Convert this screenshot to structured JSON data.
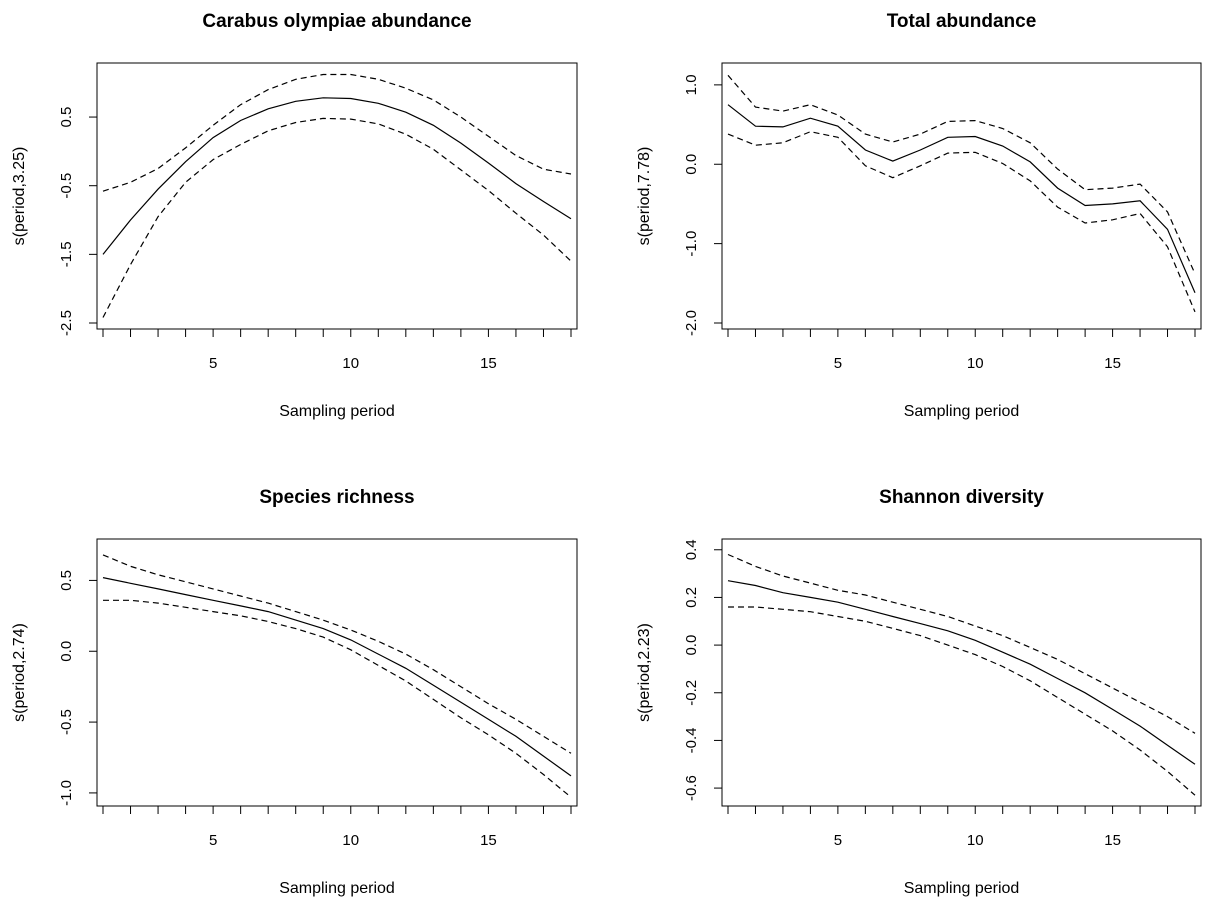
{
  "chart_data": [
    {
      "type": "line",
      "title": "Carabus olympiae abundance",
      "xlabel": "Sampling period",
      "ylabel": "s(period,3.25)",
      "xlim": [
        1,
        18
      ],
      "ylim": [
        -2.5,
        1.2
      ],
      "xticks": [
        5,
        10,
        15
      ],
      "yticks": [
        -2.5,
        -1.5,
        -0.5,
        0.5
      ],
      "x": [
        1,
        2,
        3,
        4,
        5,
        6,
        7,
        8,
        9,
        10,
        11,
        12,
        13,
        14,
        15,
        16,
        17,
        18
      ],
      "series": [
        {
          "role": "estimate",
          "values": [
            -1.5,
            -1.0,
            -0.55,
            -0.15,
            0.2,
            0.45,
            0.62,
            0.73,
            0.78,
            0.77,
            0.7,
            0.57,
            0.38,
            0.12,
            -0.17,
            -0.47,
            -0.73,
            -0.98
          ]
        },
        {
          "role": "upper",
          "values": [
            -0.58,
            -0.45,
            -0.25,
            0.05,
            0.38,
            0.68,
            0.9,
            1.05,
            1.12,
            1.12,
            1.05,
            0.92,
            0.75,
            0.5,
            0.22,
            -0.06,
            -0.26,
            -0.33
          ]
        },
        {
          "role": "lower",
          "values": [
            -2.42,
            -1.65,
            -0.95,
            -0.45,
            -0.12,
            0.1,
            0.3,
            0.42,
            0.48,
            0.47,
            0.4,
            0.25,
            0.03,
            -0.27,
            -0.57,
            -0.9,
            -1.22,
            -1.6
          ]
        }
      ]
    },
    {
      "type": "line",
      "title": "Total abundance",
      "xlabel": "Sampling period",
      "ylabel": "s(period,7.78)",
      "xlim": [
        1,
        18
      ],
      "ylim": [
        -2.0,
        1.2
      ],
      "xticks": [
        5,
        10,
        15
      ],
      "yticks": [
        -2.0,
        -1.0,
        0.0,
        1.0
      ],
      "x": [
        1,
        2,
        3,
        4,
        5,
        6,
        7,
        8,
        9,
        10,
        11,
        12,
        13,
        14,
        15,
        16,
        17,
        18
      ],
      "series": [
        {
          "role": "estimate",
          "values": [
            0.75,
            0.48,
            0.47,
            0.58,
            0.48,
            0.18,
            0.04,
            0.18,
            0.34,
            0.35,
            0.23,
            0.03,
            -0.3,
            -0.52,
            -0.5,
            -0.46,
            -0.82,
            -1.62
          ]
        },
        {
          "role": "upper",
          "values": [
            1.12,
            0.72,
            0.67,
            0.75,
            0.62,
            0.38,
            0.28,
            0.38,
            0.54,
            0.55,
            0.45,
            0.27,
            -0.06,
            -0.32,
            -0.3,
            -0.25,
            -0.6,
            -1.38
          ]
        },
        {
          "role": "lower",
          "values": [
            0.38,
            0.24,
            0.27,
            0.41,
            0.34,
            -0.02,
            -0.17,
            -0.02,
            0.14,
            0.15,
            0.01,
            -0.21,
            -0.54,
            -0.74,
            -0.7,
            -0.62,
            -1.04,
            -1.86
          ]
        }
      ]
    },
    {
      "type": "line",
      "title": "Species richness",
      "xlabel": "Sampling period",
      "ylabel": "s(period,2.74)",
      "xlim": [
        1,
        18
      ],
      "ylim": [
        -1.05,
        0.75
      ],
      "xticks": [
        5,
        10,
        15
      ],
      "yticks": [
        -1.0,
        -0.5,
        0.0,
        0.5
      ],
      "x": [
        1,
        2,
        3,
        4,
        5,
        6,
        7,
        8,
        9,
        10,
        11,
        12,
        13,
        14,
        15,
        16,
        17,
        18
      ],
      "series": [
        {
          "role": "estimate",
          "values": [
            0.52,
            0.48,
            0.44,
            0.4,
            0.36,
            0.32,
            0.28,
            0.22,
            0.16,
            0.08,
            -0.02,
            -0.12,
            -0.24,
            -0.36,
            -0.48,
            -0.6,
            -0.74,
            -0.88
          ]
        },
        {
          "role": "upper",
          "values": [
            0.68,
            0.6,
            0.54,
            0.49,
            0.44,
            0.39,
            0.34,
            0.28,
            0.22,
            0.15,
            0.07,
            -0.02,
            -0.13,
            -0.25,
            -0.37,
            -0.48,
            -0.6,
            -0.72
          ]
        },
        {
          "role": "lower",
          "values": [
            0.36,
            0.36,
            0.34,
            0.31,
            0.28,
            0.25,
            0.21,
            0.16,
            0.1,
            0.01,
            -0.1,
            -0.21,
            -0.34,
            -0.47,
            -0.59,
            -0.72,
            -0.87,
            -1.03
          ]
        }
      ]
    },
    {
      "type": "line",
      "title": "Shannon diversity",
      "xlabel": "Sampling period",
      "ylabel": "s(period,2.23)",
      "xlim": [
        1,
        18
      ],
      "ylim": [
        -0.65,
        0.42
      ],
      "xticks": [
        5,
        10,
        15
      ],
      "yticks": [
        -0.6,
        -0.4,
        -0.2,
        0.0,
        0.2,
        0.4
      ],
      "x": [
        1,
        2,
        3,
        4,
        5,
        6,
        7,
        8,
        9,
        10,
        11,
        12,
        13,
        14,
        15,
        16,
        17,
        18
      ],
      "series": [
        {
          "role": "estimate",
          "values": [
            0.27,
            0.25,
            0.22,
            0.2,
            0.18,
            0.15,
            0.12,
            0.09,
            0.06,
            0.02,
            -0.03,
            -0.08,
            -0.14,
            -0.2,
            -0.27,
            -0.34,
            -0.42,
            -0.5
          ]
        },
        {
          "role": "upper",
          "values": [
            0.38,
            0.33,
            0.29,
            0.26,
            0.23,
            0.21,
            0.18,
            0.15,
            0.12,
            0.08,
            0.04,
            -0.01,
            -0.06,
            -0.12,
            -0.18,
            -0.24,
            -0.3,
            -0.37
          ]
        },
        {
          "role": "lower",
          "values": [
            0.16,
            0.16,
            0.15,
            0.14,
            0.12,
            0.1,
            0.07,
            0.04,
            0.0,
            -0.04,
            -0.09,
            -0.15,
            -0.22,
            -0.29,
            -0.36,
            -0.44,
            -0.53,
            -0.63
          ]
        }
      ]
    }
  ]
}
